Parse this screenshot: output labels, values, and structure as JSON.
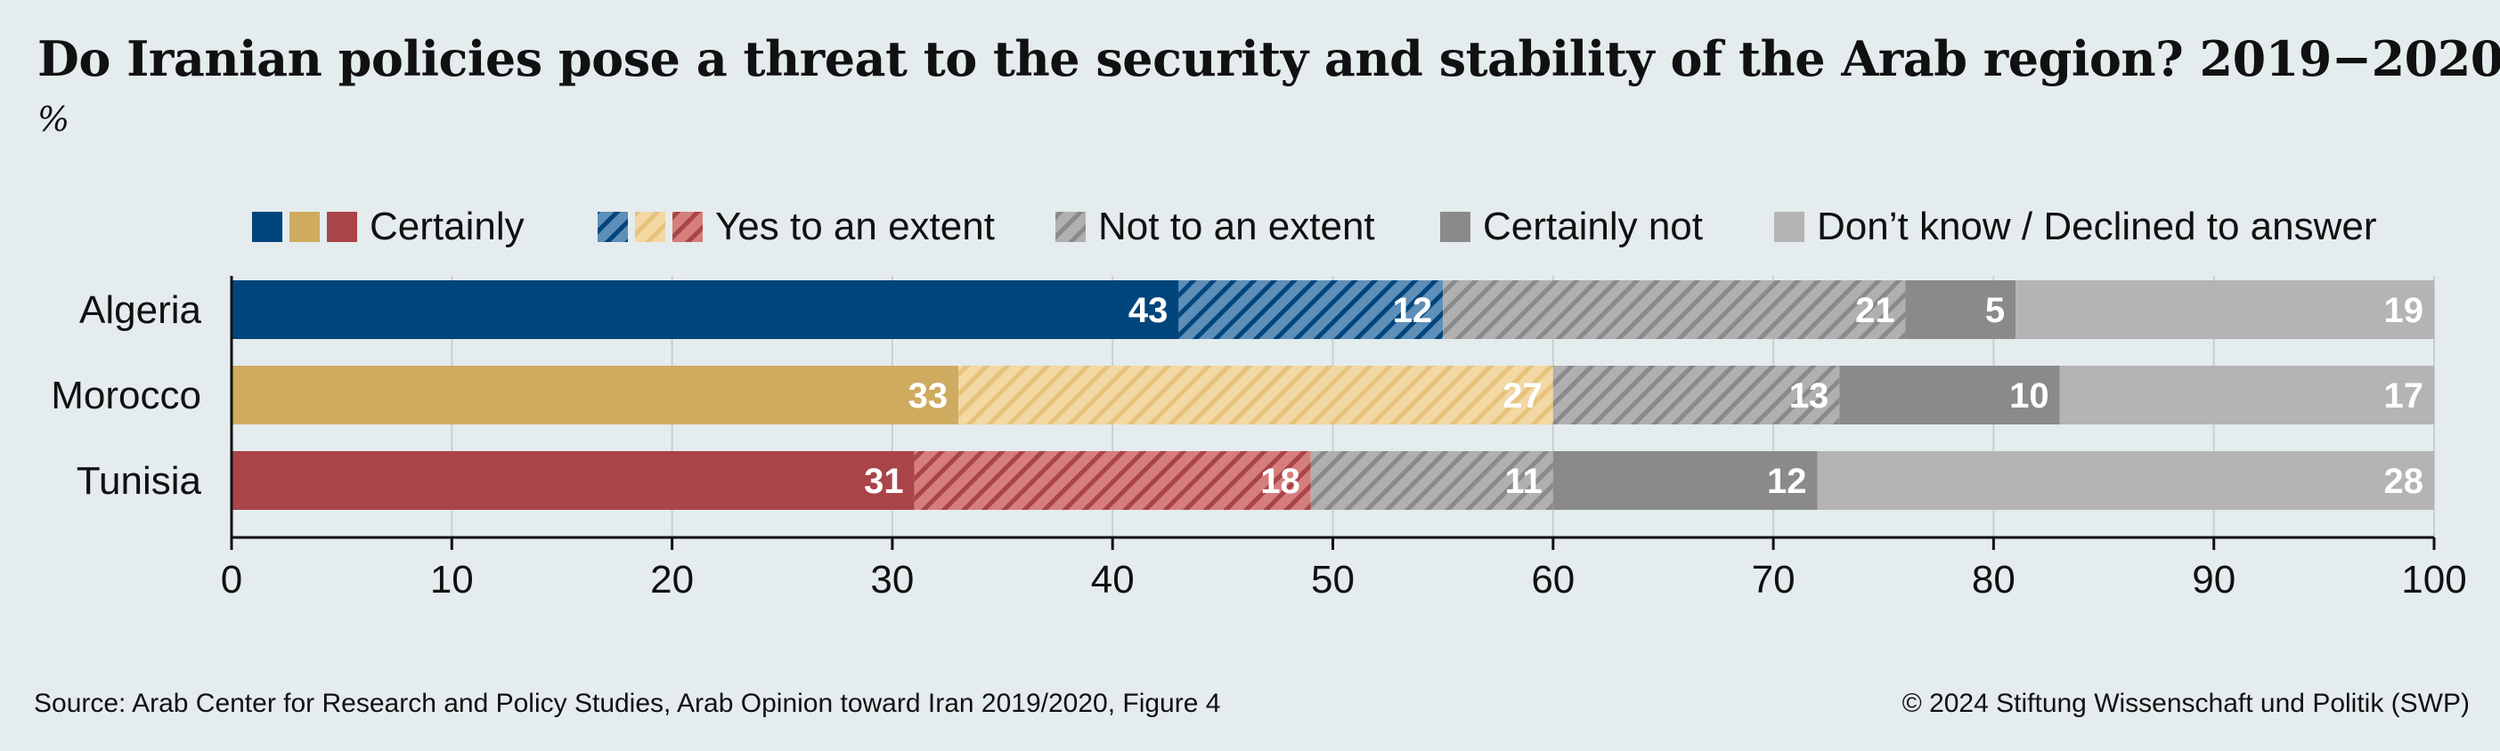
{
  "title": "Do Iranian policies pose a threat to the security and stability of the Arab region? 2019−2020",
  "unit_label": "%",
  "source": "Source: Arab Center for Research and Policy Studies, Arab Opinion toward Iran 2019/2020, Figure 4",
  "copyright": "© 2024 Stiftung Wissenschaft und Politik (SWP)",
  "chart_data": {
    "type": "bar",
    "orientation": "horizontal",
    "stacked": true,
    "categories": [
      "Algeria",
      "Morocco",
      "Tunisia"
    ],
    "series": [
      {
        "name": "Certainly",
        "values": [
          43,
          33,
          31
        ]
      },
      {
        "name": "Yes to an extent",
        "values": [
          12,
          27,
          18
        ]
      },
      {
        "name": "Not to an extent",
        "values": [
          21,
          13,
          11
        ]
      },
      {
        "name": "Certainly not",
        "values": [
          5,
          10,
          12
        ]
      },
      {
        "name": "Don’t know / Declined to answer",
        "values": [
          19,
          17,
          28
        ]
      }
    ],
    "xlim": [
      0,
      100
    ],
    "xticks": [
      0,
      10,
      20,
      30,
      40,
      50,
      60,
      70,
      80,
      90,
      100
    ],
    "grid": true,
    "legend_position": "top",
    "colors": {
      "row_certainly": [
        "#00457c",
        "#cfab5f",
        "#a94449"
      ],
      "row_yes_extent": [
        "#5e8fb8",
        "#f2d8a3",
        "#d67e7e"
      ],
      "not_extent": "#b0b0b0",
      "certainly_not": "#8a8a8a",
      "dont_know": "#b4b4b4",
      "hatch": "#8a8a8a"
    }
  }
}
